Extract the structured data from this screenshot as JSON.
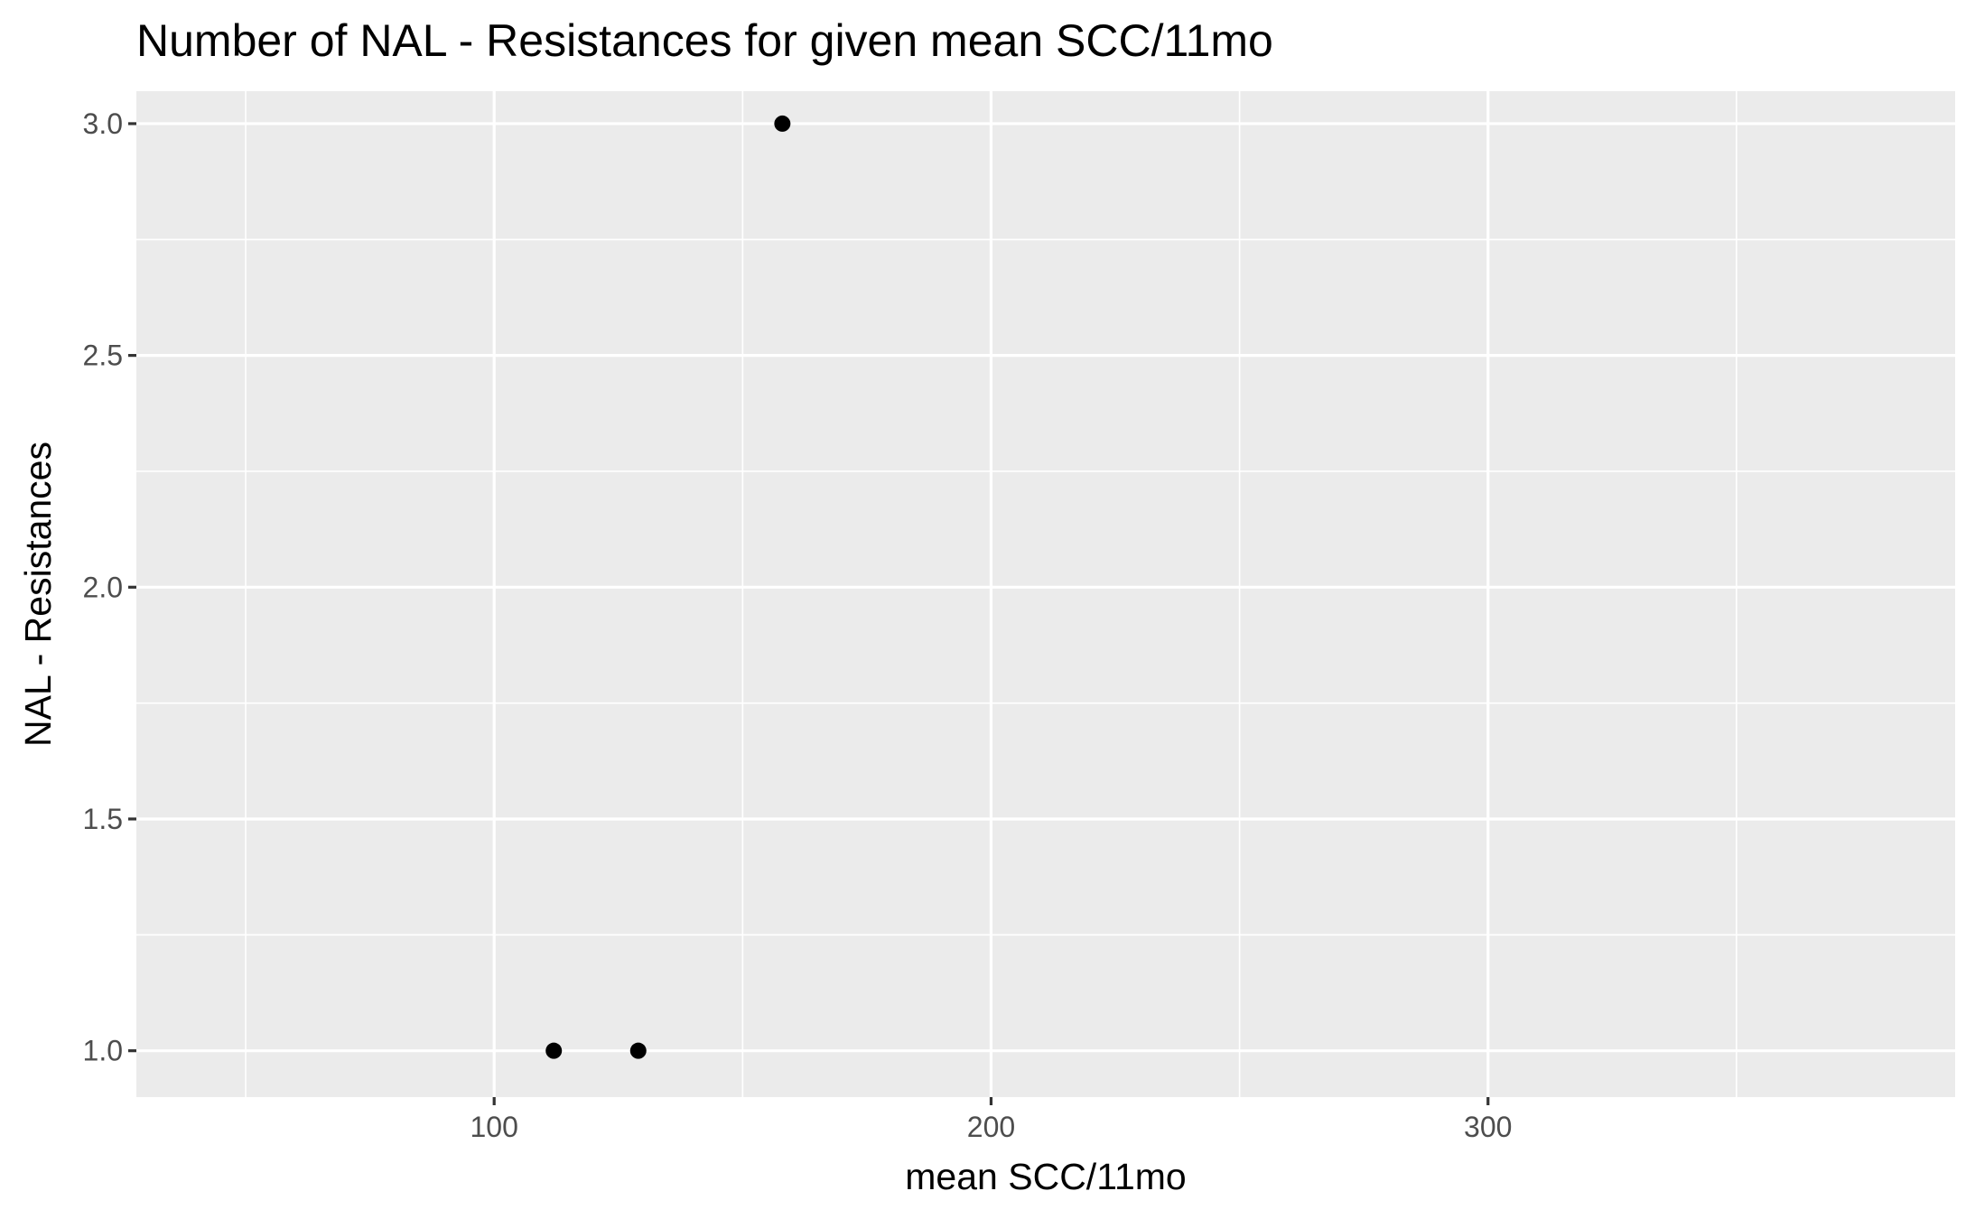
{
  "chart_data": {
    "type": "scatter",
    "title": "Number of NAL - Resistances for given mean SCC/11mo",
    "xlabel": "mean SCC/11mo",
    "ylabel": "NAL - Resistances",
    "xlim": [
      28,
      394
    ],
    "ylim": [
      0.9,
      3.07
    ],
    "x_ticks": [
      {
        "value": 100,
        "label": "100"
      },
      {
        "value": 200,
        "label": "200"
      },
      {
        "value": 300,
        "label": "300"
      }
    ],
    "x_minor": [
      50,
      150,
      250,
      350
    ],
    "y_ticks": [
      {
        "value": 1.0,
        "label": "1.0"
      },
      {
        "value": 1.5,
        "label": "1.5"
      },
      {
        "value": 2.0,
        "label": "2.0"
      },
      {
        "value": 2.5,
        "label": "2.5"
      },
      {
        "value": 3.0,
        "label": "3.0"
      }
    ],
    "y_minor": [
      1.25,
      1.75,
      2.25,
      2.75
    ],
    "points": [
      {
        "x": 112,
        "y": 1
      },
      {
        "x": 129,
        "y": 1
      },
      {
        "x": 158,
        "y": 3
      }
    ],
    "grid": true,
    "legend": "none"
  }
}
